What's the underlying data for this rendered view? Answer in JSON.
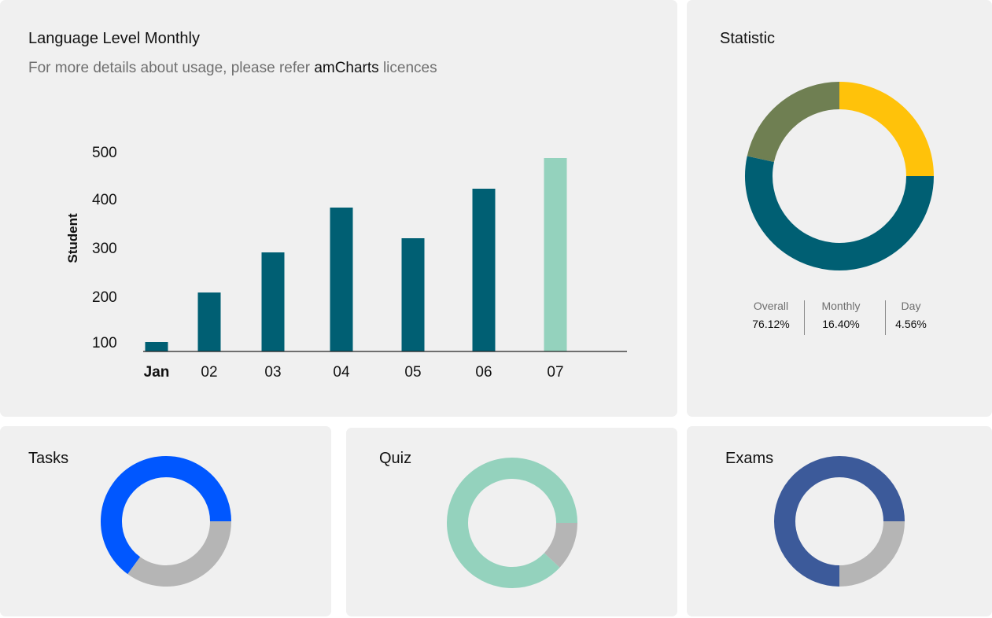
{
  "main_card": {
    "title": "Language Level Monthly",
    "subtitle_prefix": "For more details about usage, please refer ",
    "subtitle_link": "amCharts",
    "subtitle_suffix": " licences"
  },
  "chart_data": [
    {
      "type": "bar",
      "ylabel": "Student",
      "categories": [
        "Jan",
        "02",
        "03",
        "04",
        "05",
        "06",
        "07"
      ],
      "values": [
        100,
        205,
        290,
        385,
        320,
        425,
        490
      ],
      "yticks": [
        100,
        200,
        300,
        400,
        500
      ],
      "ylim": [
        80,
        520
      ],
      "colors": [
        "#005f73",
        "#005f73",
        "#005f73",
        "#005f73",
        "#005f73",
        "#005f73",
        "#94d2bd"
      ],
      "grid": false
    },
    {
      "type": "pie",
      "title": "Statistic",
      "style": "donut",
      "slices": [
        {
          "value": 25,
          "color": "#ffc20a"
        },
        {
          "value": 53.4,
          "color": "#005f73"
        },
        {
          "value": 21.6,
          "color": "#6f7f52"
        }
      ]
    },
    {
      "type": "pie",
      "title": "Tasks",
      "style": "donut",
      "slices": [
        {
          "value": 35,
          "color": "#b5b5b5"
        },
        {
          "value": 65,
          "color": "#0057ff"
        }
      ]
    },
    {
      "type": "pie",
      "title": "Quiz",
      "style": "donut",
      "slices": [
        {
          "value": 12,
          "color": "#b5b5b5"
        },
        {
          "value": 88,
          "color": "#94d2bd"
        }
      ]
    },
    {
      "type": "pie",
      "title": "Exams",
      "style": "donut",
      "slices": [
        {
          "value": 25,
          "color": "#b5b5b5"
        },
        {
          "value": 75,
          "color": "#3c5a9a"
        }
      ]
    }
  ],
  "statistic": {
    "title": "Statistic",
    "legend": [
      {
        "label": "Overall",
        "value": "76.12%"
      },
      {
        "label": "Monthly",
        "value": "16.40%"
      },
      {
        "label": "Day",
        "value": "4.56%"
      }
    ]
  },
  "tasks": {
    "title": "Tasks"
  },
  "quiz": {
    "title": "Quiz"
  },
  "exams": {
    "title": "Exams"
  }
}
